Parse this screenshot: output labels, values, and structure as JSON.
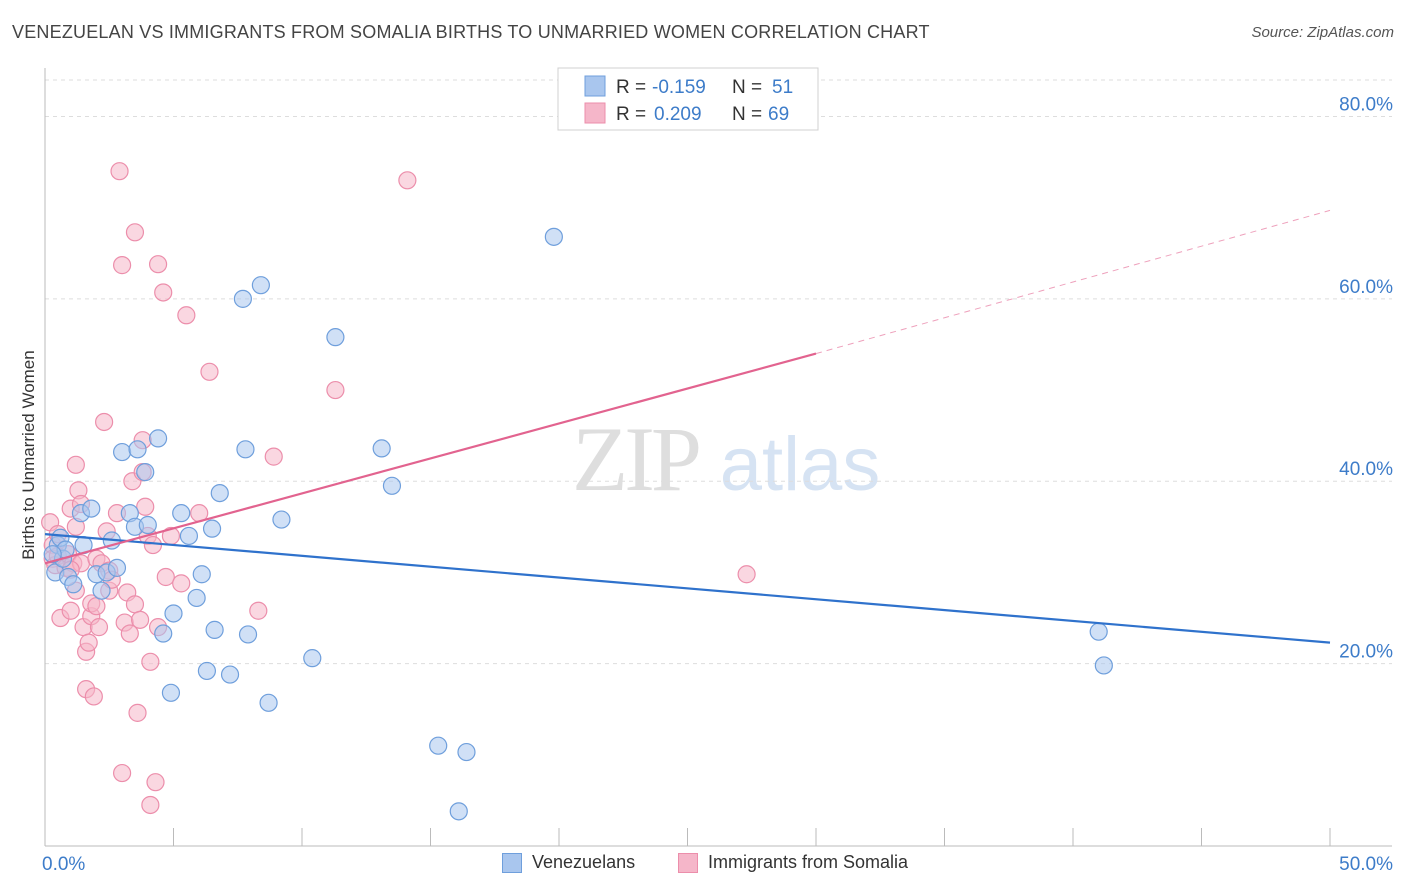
{
  "header": {
    "title": "VENEZUELAN VS IMMIGRANTS FROM SOMALIA BIRTHS TO UNMARRIED WOMEN CORRELATION CHART",
    "source": "Source: ZipAtlas.com"
  },
  "watermark": {
    "zip": "ZIP",
    "atlas": "atlas"
  },
  "legend": {
    "r_label": "R =",
    "n_label": "N =",
    "series": [
      {
        "r": "-0.159",
        "n": "51"
      },
      {
        "r": "0.209",
        "n": "69"
      }
    ]
  },
  "colors": {
    "venezuelans_fill": "#a9c6ee",
    "venezuelans_stroke": "#6f9fdc",
    "venezuelans_line": "#2f72cc",
    "somalia_fill": "#f5b6c9",
    "somalia_stroke": "#ec8eab",
    "somalia_line": "#e2638f",
    "axis_label": "#3d7cc9",
    "grid": "#dddddd"
  },
  "chart_data": {
    "type": "scatter",
    "title": "VENEZUELAN VS IMMIGRANTS FROM SOMALIA BIRTHS TO UNMARRIED WOMEN CORRELATION CHART",
    "xlabel": "",
    "ylabel": "Births to Unmarried Women",
    "xlim": [
      0,
      50
    ],
    "ylim": [
      0,
      84
    ],
    "x_tick_labels": [
      "0.0%",
      "50.0%"
    ],
    "y_ticks": [
      20,
      40,
      60,
      80
    ],
    "y_tick_labels": [
      "20.0%",
      "40.0%",
      "60.0%",
      "80.0%"
    ],
    "grid": true,
    "legend_position": "bottom-center",
    "series": [
      {
        "name": "Venezuelans",
        "r": -0.159,
        "n": 51,
        "trend": {
          "x0": 0,
          "y0": 34.2,
          "x1": 50,
          "y1": 22.3
        },
        "points": [
          [
            0.4,
            30.0
          ],
          [
            0.5,
            33.0
          ],
          [
            0.6,
            33.8
          ],
          [
            0.7,
            31.5
          ],
          [
            0.8,
            32.5
          ],
          [
            0.9,
            29.5
          ],
          [
            1.1,
            28.7
          ],
          [
            1.4,
            36.5
          ],
          [
            1.8,
            37.0
          ],
          [
            2.0,
            29.8
          ],
          [
            2.2,
            28.0
          ],
          [
            2.4,
            30.0
          ],
          [
            2.6,
            33.5
          ],
          [
            2.8,
            30.5
          ],
          [
            3.0,
            43.2
          ],
          [
            3.3,
            36.5
          ],
          [
            3.5,
            35.0
          ],
          [
            3.6,
            43.5
          ],
          [
            3.9,
            41.0
          ],
          [
            4.4,
            44.7
          ],
          [
            4.6,
            23.3
          ],
          [
            4.9,
            16.8
          ],
          [
            5.0,
            25.5
          ],
          [
            5.3,
            36.5
          ],
          [
            5.6,
            34.0
          ],
          [
            5.9,
            27.2
          ],
          [
            6.1,
            29.8
          ],
          [
            6.3,
            19.2
          ],
          [
            6.5,
            34.8
          ],
          [
            6.6,
            23.7
          ],
          [
            6.8,
            38.7
          ],
          [
            7.2,
            18.8
          ],
          [
            7.7,
            60.0
          ],
          [
            7.8,
            43.5
          ],
          [
            7.9,
            23.2
          ],
          [
            8.4,
            61.5
          ],
          [
            8.7,
            15.7
          ],
          [
            9.2,
            35.8
          ],
          [
            10.4,
            20.6
          ],
          [
            11.3,
            55.8
          ],
          [
            13.1,
            43.6
          ],
          [
            13.5,
            39.5
          ],
          [
            15.3,
            11.0
          ],
          [
            16.1,
            3.8
          ],
          [
            16.4,
            10.3
          ],
          [
            19.8,
            66.8
          ],
          [
            41.0,
            23.5
          ],
          [
            41.2,
            19.8
          ],
          [
            0.3,
            32.0
          ],
          [
            1.5,
            33.0
          ],
          [
            4.0,
            35.2
          ]
        ]
      },
      {
        "name": "Immigrants from Somalia",
        "r": 0.209,
        "n": 69,
        "trend": {
          "x0": 0,
          "y0": 31.0,
          "x1": 30,
          "y1": 54.0,
          "dashed_x0": 30,
          "dashed_y0": 54.0,
          "dashed_x1": 50,
          "dashed_y1": 69.7
        },
        "points": [
          [
            0.2,
            35.5
          ],
          [
            0.3,
            33.0
          ],
          [
            0.3,
            31.5
          ],
          [
            0.4,
            30.8
          ],
          [
            0.5,
            31.8
          ],
          [
            0.6,
            25.0
          ],
          [
            0.8,
            30.5
          ],
          [
            0.9,
            32.0
          ],
          [
            1.0,
            25.8
          ],
          [
            1.0,
            37.0
          ],
          [
            1.1,
            31.0
          ],
          [
            1.2,
            28.0
          ],
          [
            1.2,
            41.8
          ],
          [
            1.3,
            39.0
          ],
          [
            1.4,
            31.0
          ],
          [
            1.4,
            37.5
          ],
          [
            1.5,
            24.0
          ],
          [
            1.6,
            17.2
          ],
          [
            1.6,
            21.3
          ],
          [
            1.7,
            22.3
          ],
          [
            1.8,
            25.2
          ],
          [
            1.8,
            26.6
          ],
          [
            1.9,
            16.4
          ],
          [
            2.0,
            31.5
          ],
          [
            2.0,
            26.3
          ],
          [
            2.1,
            24.0
          ],
          [
            2.2,
            31.0
          ],
          [
            2.3,
            46.5
          ],
          [
            2.4,
            34.5
          ],
          [
            2.5,
            28.0
          ],
          [
            2.5,
            30.2
          ],
          [
            2.6,
            29.2
          ],
          [
            2.8,
            36.5
          ],
          [
            2.9,
            74.0
          ],
          [
            3.0,
            63.7
          ],
          [
            3.0,
            8.0
          ],
          [
            3.1,
            24.5
          ],
          [
            3.2,
            27.8
          ],
          [
            3.3,
            23.3
          ],
          [
            3.4,
            40.0
          ],
          [
            3.5,
            67.3
          ],
          [
            3.5,
            26.5
          ],
          [
            3.6,
            14.6
          ],
          [
            3.7,
            24.8
          ],
          [
            3.8,
            41.0
          ],
          [
            3.8,
            44.5
          ],
          [
            3.9,
            37.2
          ],
          [
            4.0,
            34.0
          ],
          [
            4.1,
            4.5
          ],
          [
            4.1,
            20.2
          ],
          [
            4.2,
            33.0
          ],
          [
            4.3,
            7.0
          ],
          [
            4.4,
            24.0
          ],
          [
            4.4,
            63.8
          ],
          [
            4.6,
            60.7
          ],
          [
            4.7,
            29.5
          ],
          [
            4.9,
            34.0
          ],
          [
            5.3,
            28.8
          ],
          [
            5.5,
            58.2
          ],
          [
            6.0,
            36.5
          ],
          [
            6.4,
            52.0
          ],
          [
            8.3,
            25.8
          ],
          [
            8.9,
            42.7
          ],
          [
            11.3,
            50.0
          ],
          [
            14.1,
            73.0
          ],
          [
            27.3,
            29.8
          ],
          [
            0.5,
            34.2
          ],
          [
            1.0,
            30.3
          ],
          [
            1.2,
            35.0
          ]
        ]
      }
    ]
  }
}
